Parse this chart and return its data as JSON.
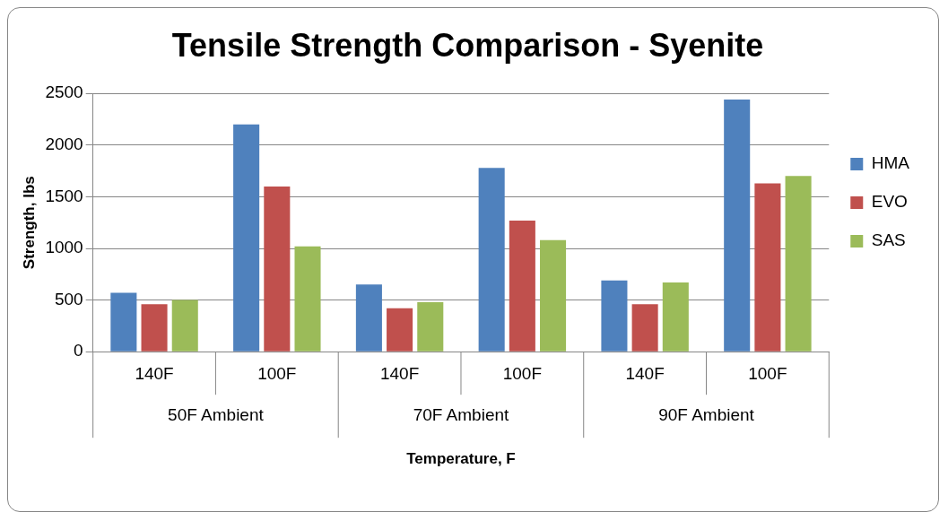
{
  "chart_data": {
    "type": "bar",
    "title": "Tensile Strength Comparison - Syenite",
    "xlabel": "Temperature, F",
    "ylabel": "Strength, lbs",
    "categories": [
      "140F",
      "100F",
      "140F",
      "100F",
      "140F",
      "100F"
    ],
    "annotations": [
      "50F Ambient",
      "70F Ambient",
      "90F Ambient"
    ],
    "series": [
      {
        "name": "HMA",
        "color": "#4f81bd",
        "values": [
          570,
          2200,
          650,
          1780,
          690,
          2440
        ]
      },
      {
        "name": "EVO",
        "color": "#c0504d",
        "values": [
          460,
          1600,
          420,
          1270,
          460,
          1630
        ]
      },
      {
        "name": "SAS",
        "color": "#9bbb59",
        "values": [
          500,
          1020,
          480,
          1080,
          670,
          1700
        ]
      }
    ],
    "ylim": [
      0,
      2500
    ],
    "yticks": [
      0,
      500,
      1000,
      1500,
      2000,
      2500
    ],
    "grid": "y",
    "legend": "right"
  }
}
